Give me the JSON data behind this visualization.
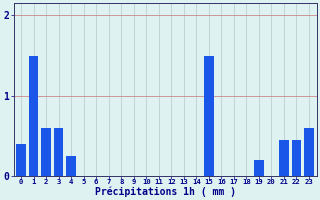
{
  "hours": [
    0,
    1,
    2,
    3,
    4,
    5,
    6,
    7,
    8,
    9,
    10,
    11,
    12,
    13,
    14,
    15,
    16,
    17,
    18,
    19,
    20,
    21,
    22,
    23
  ],
  "values": [
    0.4,
    1.5,
    0.6,
    0.6,
    0.25,
    0.0,
    0.0,
    0.0,
    0.0,
    0.0,
    0.0,
    0.0,
    0.0,
    0.0,
    0.0,
    1.5,
    0.0,
    0.0,
    0.0,
    0.2,
    0.0,
    0.45,
    0.45,
    0.6
  ],
  "bar_color": "#1a56e8",
  "bg_color": "#dff2f2",
  "grid_color": "#b8c8c8",
  "axis_color": "#333366",
  "text_color": "#000088",
  "xlabel": "Précipitations 1h ( mm )",
  "ylim": [
    0,
    2.15
  ],
  "yticks": [
    0,
    1,
    2
  ],
  "xlim": [
    -0.6,
    23.6
  ],
  "figsize": [
    3.2,
    2.0
  ],
  "dpi": 100
}
